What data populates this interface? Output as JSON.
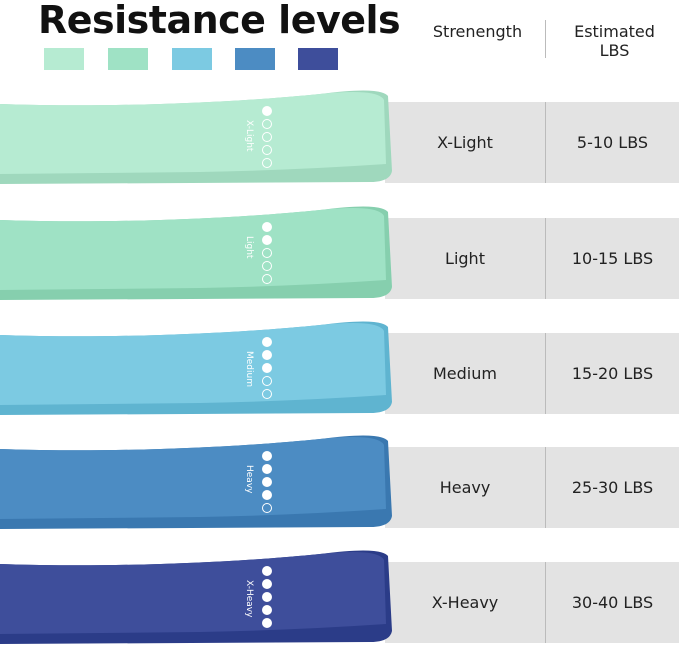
{
  "title": "Resistance levels",
  "header": {
    "strength": "Strenength",
    "estimated": "Estimated\nLBS"
  },
  "levels": [
    {
      "name": "X-Light",
      "lbs": "5-10  LBS",
      "color": "#b6ebd2",
      "edge": "#9fd8bd",
      "filled": 1
    },
    {
      "name": "Light",
      "lbs": "10-15 LBS",
      "color": "#9fe2c5",
      "edge": "#86cfae",
      "filled": 2
    },
    {
      "name": "Medium",
      "lbs": "15-20 LBS",
      "color": "#7ccae2",
      "edge": "#5fb4d0",
      "filled": 3
    },
    {
      "name": "Heavy",
      "lbs": "25-30 LBS",
      "color": "#4c8cc3",
      "edge": "#3a78b0",
      "filled": 4
    },
    {
      "name": "X-Heavy",
      "lbs": "30-40 LBS",
      "color": "#3e4e9b",
      "edge": "#2b3c88",
      "filled": 5
    }
  ]
}
